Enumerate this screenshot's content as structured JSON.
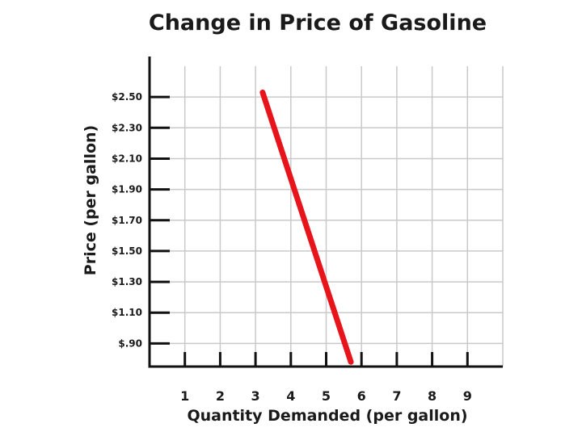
{
  "chart_data": {
    "type": "line",
    "title": "Change in Price of Gasoline",
    "xlabel": "Quantity Demanded (per gallon)",
    "ylabel": "Price (per gallon)",
    "x_ticks": [
      1,
      2,
      3,
      4,
      5,
      6,
      7,
      8,
      9
    ],
    "y_ticks": [
      "$2.50",
      "$2.30",
      "$2.10",
      "$1.90",
      "$1.70",
      "$1.50",
      "$1.30",
      "$1.10",
      "$.90"
    ],
    "y_tick_values": [
      2.5,
      2.3,
      2.1,
      1.9,
      1.7,
      1.5,
      1.3,
      1.1,
      0.9
    ],
    "xlim": [
      0,
      10
    ],
    "ylim": [
      0.75,
      2.7
    ],
    "grid": true,
    "series": [
      {
        "color": "#e8141c",
        "points": [
          {
            "x": 3.2,
            "y": 2.53
          },
          {
            "x": 5.7,
            "y": 0.78
          }
        ]
      }
    ]
  }
}
